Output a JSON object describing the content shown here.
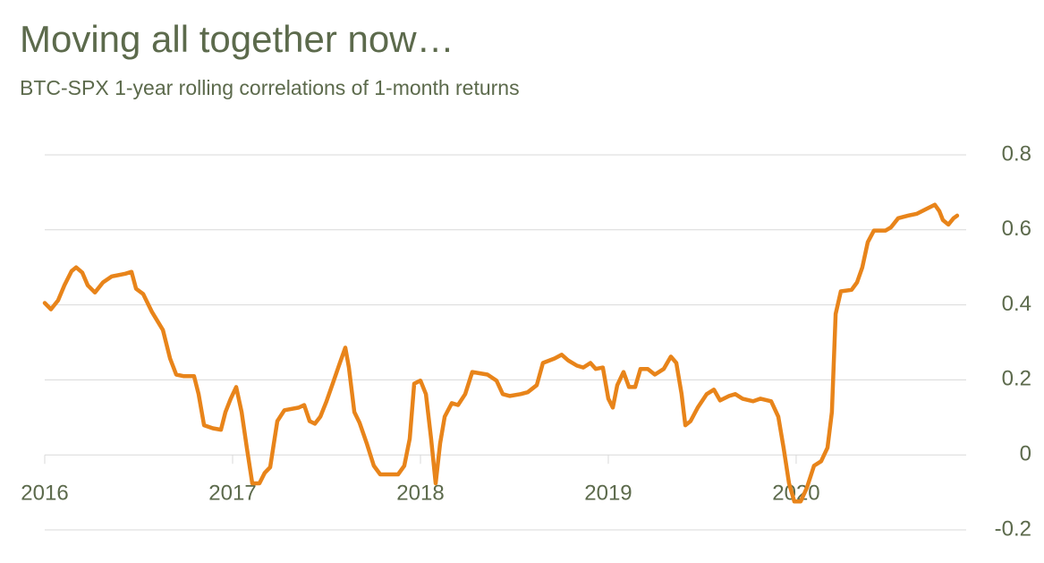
{
  "chart_data": {
    "type": "line",
    "title": "Moving all together now…",
    "subtitle": "BTC-SPX 1-year rolling correlations of 1-month returns",
    "x": [
      2016.0,
      2016.033,
      2016.071,
      2016.105,
      2016.143,
      2016.167,
      2016.2,
      2016.229,
      2016.267,
      2016.31,
      2016.357,
      2016.429,
      2016.462,
      2016.486,
      2016.524,
      2016.571,
      2016.629,
      2016.667,
      2016.7,
      2016.738,
      2016.795,
      2016.819,
      2016.848,
      2016.895,
      2016.938,
      2016.962,
      2016.99,
      2017.019,
      2017.048,
      2017.076,
      2017.105,
      2017.143,
      2017.171,
      2017.2,
      2017.238,
      2017.276,
      2017.352,
      2017.381,
      2017.41,
      2017.438,
      2017.467,
      2017.5,
      2017.533,
      2017.571,
      2017.6,
      2017.619,
      2017.648,
      2017.676,
      2017.714,
      2017.752,
      2017.786,
      2017.833,
      2017.881,
      2017.914,
      2017.943,
      2017.967,
      2018.0,
      2018.029,
      2018.057,
      2018.081,
      2018.105,
      2018.129,
      2018.167,
      2018.2,
      2018.238,
      2018.276,
      2018.357,
      2018.405,
      2018.438,
      2018.476,
      2018.533,
      2018.571,
      2018.619,
      2018.652,
      2018.714,
      2018.752,
      2018.786,
      2018.833,
      2018.867,
      2018.905,
      2018.933,
      2018.971,
      2019.0,
      2019.024,
      2019.048,
      2019.081,
      2019.11,
      2019.143,
      2019.171,
      2019.21,
      2019.248,
      2019.295,
      2019.333,
      2019.362,
      2019.39,
      2019.41,
      2019.438,
      2019.476,
      2019.524,
      2019.562,
      2019.595,
      2019.643,
      2019.676,
      2019.714,
      2019.771,
      2019.81,
      2019.867,
      2019.905,
      2019.933,
      2019.962,
      2019.99,
      2020.024,
      2020.057,
      2020.095,
      2020.133,
      2020.167,
      2020.19,
      2020.21,
      2020.238,
      2020.295,
      2020.324,
      2020.352,
      2020.381,
      2020.414,
      2020.476,
      2020.505,
      2020.543,
      2020.595,
      2020.643,
      2020.69,
      2020.738,
      2020.762,
      2020.781,
      2020.81,
      2020.838,
      2020.857
    ],
    "series": [
      {
        "color": "#e8841a",
        "values": [
          0.405,
          0.388,
          0.412,
          0.452,
          0.49,
          0.5,
          0.486,
          0.452,
          0.433,
          0.46,
          0.476,
          0.483,
          0.488,
          0.443,
          0.429,
          0.381,
          0.333,
          0.257,
          0.214,
          0.21,
          0.21,
          0.162,
          0.079,
          0.071,
          0.067,
          0.114,
          0.15,
          0.181,
          0.114,
          0.019,
          -0.076,
          -0.076,
          -0.048,
          -0.033,
          0.09,
          0.119,
          0.126,
          0.133,
          0.09,
          0.083,
          0.102,
          0.143,
          0.19,
          0.245,
          0.286,
          0.233,
          0.114,
          0.086,
          0.031,
          -0.029,
          -0.052,
          -0.052,
          -0.052,
          -0.029,
          0.043,
          0.19,
          0.198,
          0.162,
          0.043,
          -0.076,
          0.031,
          0.102,
          0.138,
          0.133,
          0.162,
          0.221,
          0.214,
          0.198,
          0.162,
          0.157,
          0.162,
          0.167,
          0.186,
          0.245,
          0.257,
          0.267,
          0.252,
          0.238,
          0.233,
          0.245,
          0.229,
          0.233,
          0.15,
          0.126,
          0.186,
          0.221,
          0.181,
          0.181,
          0.229,
          0.229,
          0.214,
          0.229,
          0.262,
          0.245,
          0.162,
          0.079,
          0.09,
          0.126,
          0.162,
          0.174,
          0.145,
          0.157,
          0.162,
          0.15,
          0.143,
          0.15,
          0.143,
          0.102,
          0.019,
          -0.076,
          -0.124,
          -0.124,
          -0.088,
          -0.029,
          -0.017,
          0.019,
          0.114,
          0.376,
          0.436,
          0.44,
          0.46,
          0.5,
          0.567,
          0.598,
          0.598,
          0.607,
          0.631,
          0.638,
          0.643,
          0.655,
          0.667,
          0.65,
          0.626,
          0.614,
          0.631,
          0.638
        ]
      }
    ],
    "xlim": [
      2016,
      2020.905
    ],
    "xticks": [
      2016,
      2017,
      2018,
      2019,
      2020
    ],
    "ylim": [
      -0.2,
      0.8
    ],
    "yticks": [
      -0.2,
      0,
      0.2,
      0.4,
      0.6,
      0.8
    ],
    "grid": true
  }
}
